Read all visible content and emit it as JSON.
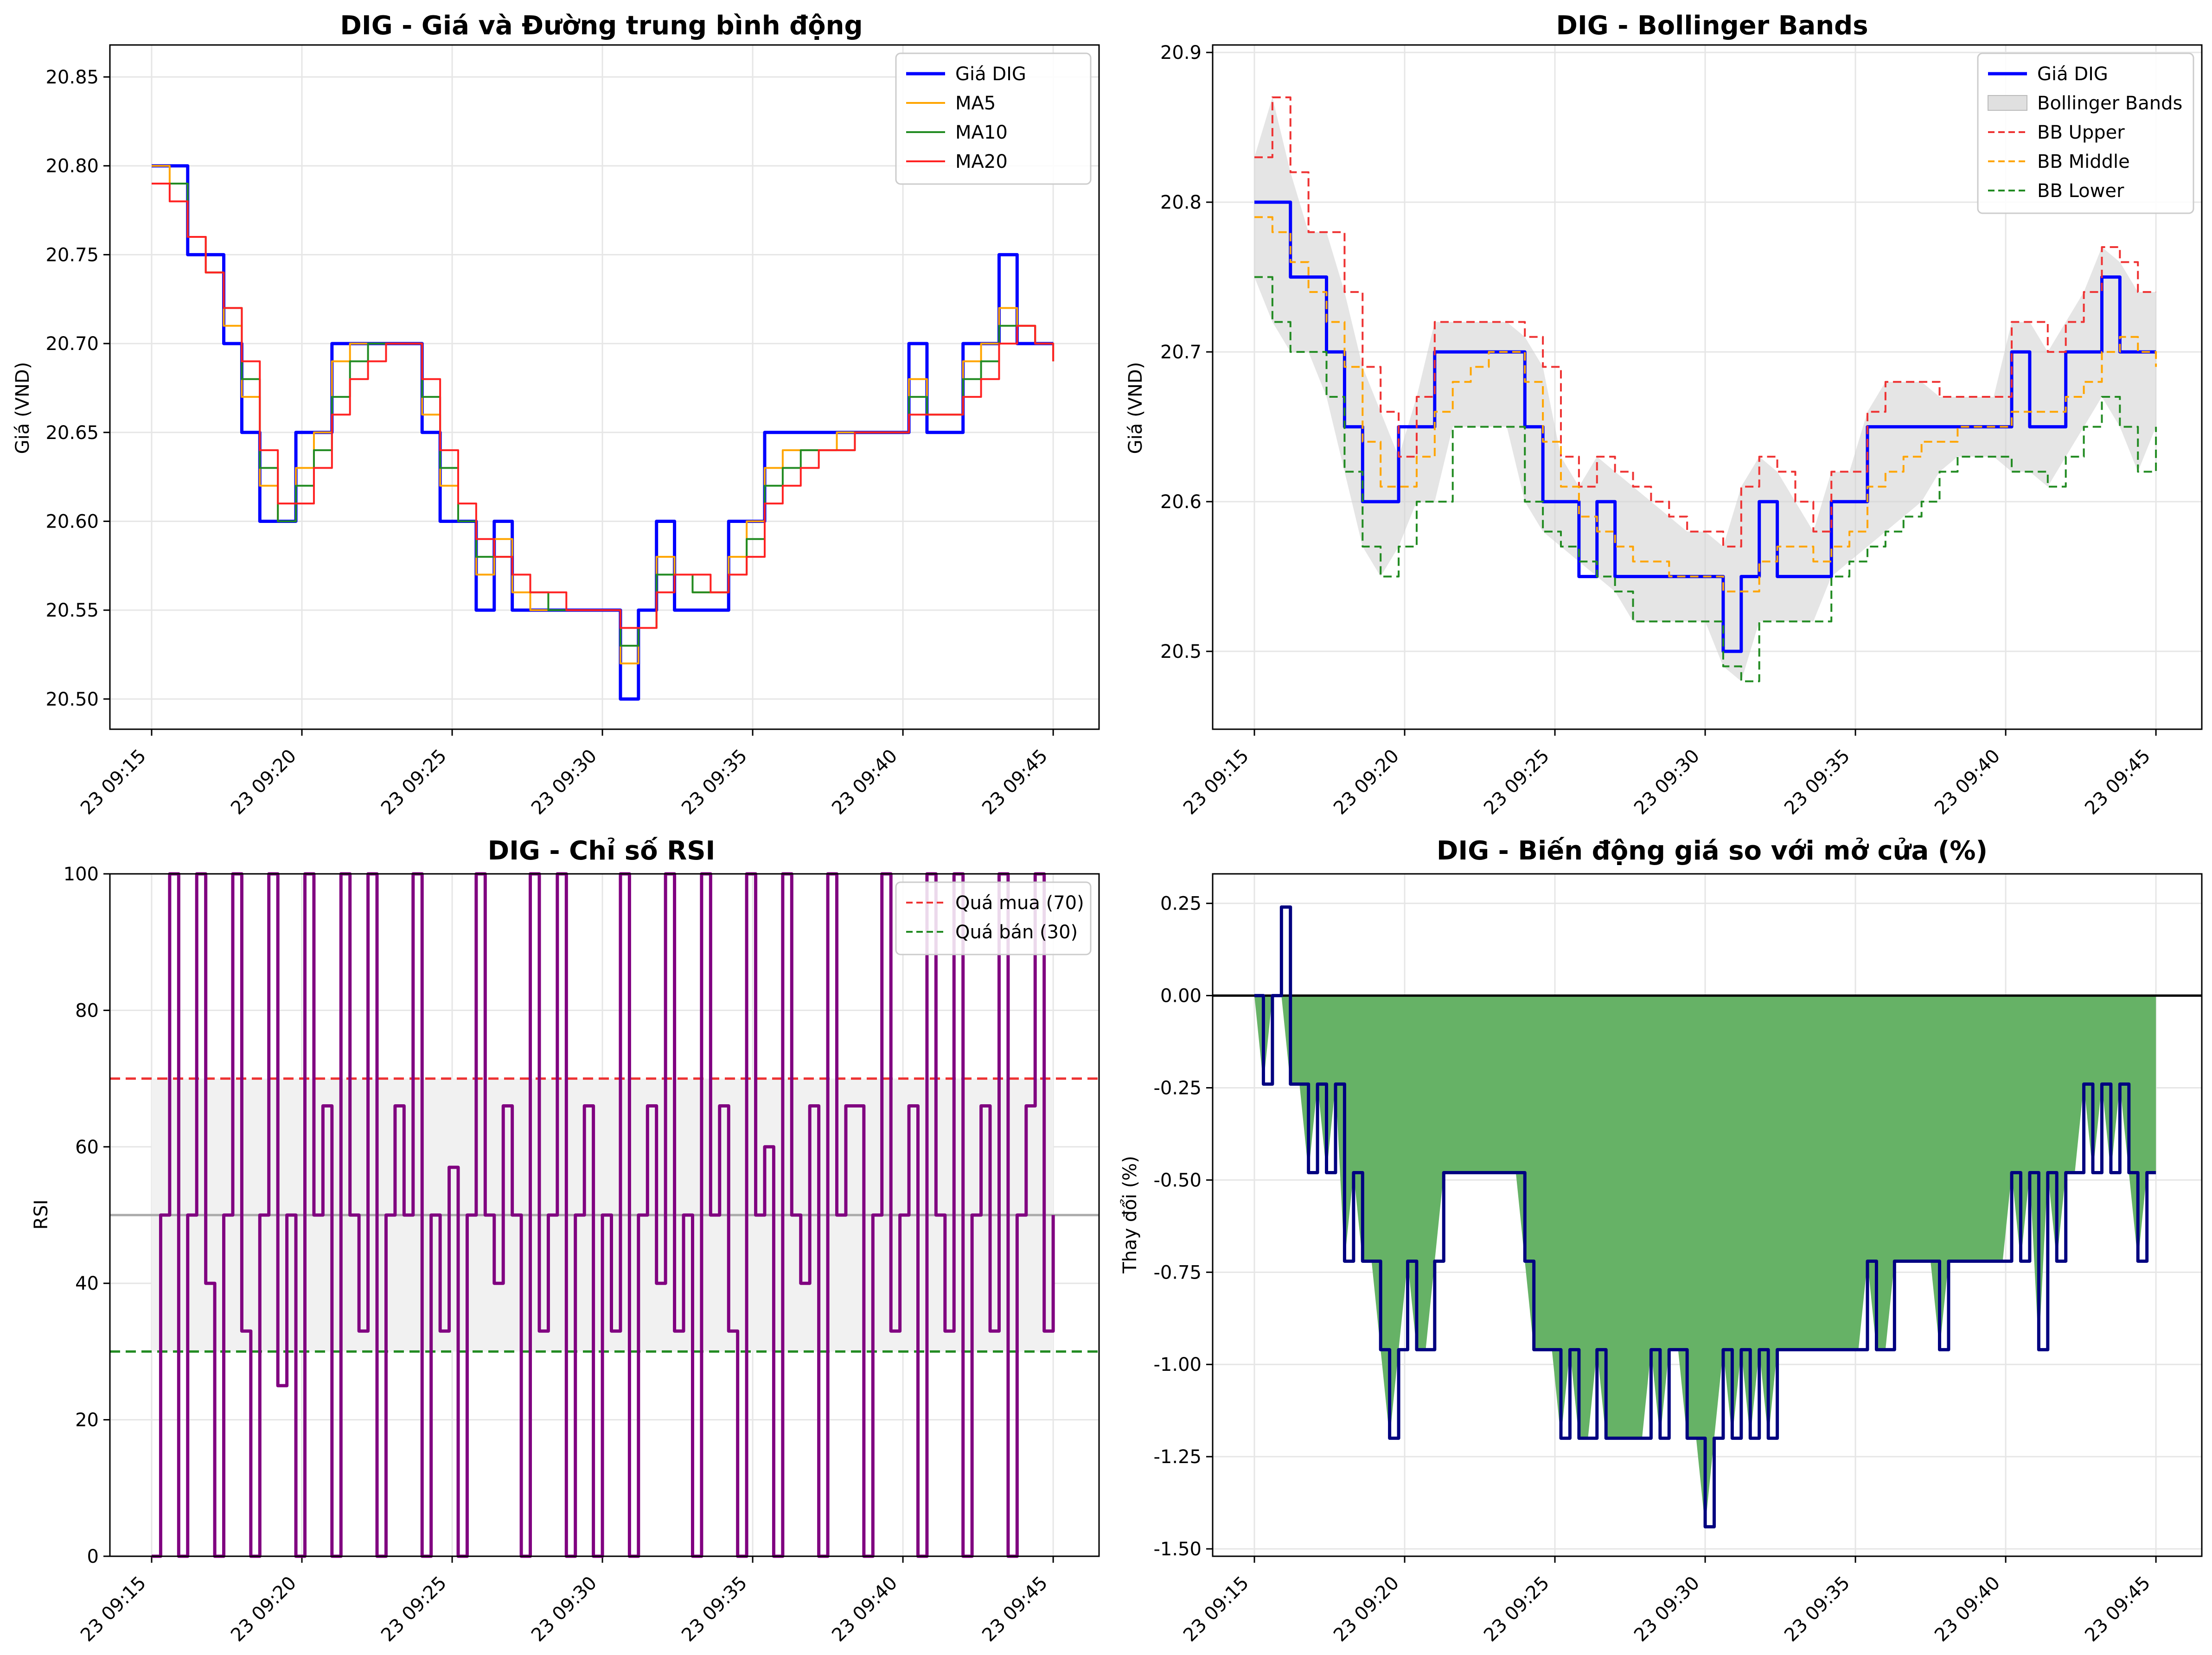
{
  "chart_data": [
    {
      "type": "line",
      "title": "DIG - Giá và Đường trung bình động",
      "xlabel": "",
      "ylabel": "Giá (VND)",
      "x_ticks": [
        "23 09:15",
        "23 09:20",
        "23 09:25",
        "23 09:30",
        "23 09:35",
        "23 09:40",
        "23 09:45"
      ],
      "y_ticks": [
        "20.50",
        "20.55",
        "20.60",
        "20.65",
        "20.70",
        "20.75",
        "20.80",
        "20.85"
      ],
      "x_range_min": [
        0,
        30.6
      ],
      "ylim": [
        20.483,
        20.868
      ],
      "grid": true,
      "legend": "top-right",
      "x": [
        0,
        0.6,
        1.2,
        1.8,
        2.4,
        3,
        3.6,
        4.2,
        4.8,
        5.4,
        6,
        6.6,
        7.2,
        7.8,
        8.4,
        9,
        9.6,
        10.2,
        10.8,
        11.4,
        12,
        12.6,
        13.2,
        13.8,
        14.4,
        15,
        15.6,
        16.2,
        16.8,
        17.4,
        18,
        18.6,
        19.2,
        19.8,
        20.4,
        21,
        21.6,
        22.2,
        22.8,
        23.4,
        24,
        24.6,
        25.2,
        25.8,
        26.4,
        27,
        27.6,
        28.2,
        28.8,
        29.4,
        30
      ],
      "series": [
        {
          "name": "Giá DIG",
          "color": "#0000ff",
          "width": 7,
          "values": [
            20.8,
            20.8,
            20.75,
            20.75,
            20.7,
            20.65,
            20.6,
            20.6,
            20.65,
            20.65,
            20.7,
            20.7,
            20.7,
            20.7,
            20.7,
            20.65,
            20.6,
            20.6,
            20.55,
            20.6,
            20.55,
            20.55,
            20.55,
            20.55,
            20.55,
            20.55,
            20.5,
            20.55,
            20.6,
            20.55,
            20.55,
            20.55,
            20.6,
            20.6,
            20.65,
            20.65,
            20.65,
            20.65,
            20.65,
            20.65,
            20.65,
            20.65,
            20.7,
            20.65,
            20.65,
            20.7,
            20.7,
            20.75,
            20.7,
            20.7,
            20.7
          ]
        },
        {
          "name": "MA5",
          "color": "#ffa500",
          "width": 4,
          "values": [
            20.8,
            20.79,
            20.76,
            20.74,
            20.71,
            20.67,
            20.62,
            20.6,
            20.63,
            20.65,
            20.69,
            20.7,
            20.7,
            20.7,
            20.7,
            20.66,
            20.62,
            20.6,
            20.57,
            20.59,
            20.56,
            20.55,
            20.55,
            20.55,
            20.55,
            20.55,
            20.52,
            20.54,
            20.58,
            20.57,
            20.56,
            20.56,
            20.58,
            20.6,
            20.63,
            20.64,
            20.64,
            20.64,
            20.65,
            20.65,
            20.65,
            20.65,
            20.68,
            20.66,
            20.66,
            20.69,
            20.7,
            20.72,
            20.71,
            20.7,
            20.7
          ]
        },
        {
          "name": "MA10",
          "color": "#228b22",
          "width": 4,
          "values": [
            20.79,
            20.79,
            20.76,
            20.74,
            20.72,
            20.68,
            20.63,
            20.6,
            20.62,
            20.64,
            20.67,
            20.69,
            20.7,
            20.7,
            20.7,
            20.67,
            20.63,
            20.6,
            20.58,
            20.58,
            20.57,
            20.56,
            20.55,
            20.55,
            20.55,
            20.55,
            20.53,
            20.54,
            20.57,
            20.57,
            20.56,
            20.56,
            20.57,
            20.59,
            20.62,
            20.63,
            20.64,
            20.64,
            20.64,
            20.65,
            20.65,
            20.65,
            20.67,
            20.66,
            20.66,
            20.68,
            20.69,
            20.71,
            20.71,
            20.7,
            20.69
          ]
        },
        {
          "name": "MA20",
          "color": "#ff2222",
          "width": 4,
          "values": [
            20.79,
            20.78,
            20.76,
            20.74,
            20.72,
            20.69,
            20.64,
            20.61,
            20.61,
            20.63,
            20.66,
            20.68,
            20.69,
            20.7,
            20.7,
            20.68,
            20.64,
            20.61,
            20.59,
            20.58,
            20.57,
            20.56,
            20.56,
            20.55,
            20.55,
            20.55,
            20.54,
            20.54,
            20.56,
            20.57,
            20.57,
            20.56,
            20.57,
            20.58,
            20.61,
            20.62,
            20.63,
            20.64,
            20.64,
            20.65,
            20.65,
            20.65,
            20.66,
            20.66,
            20.66,
            20.67,
            20.68,
            20.7,
            20.71,
            20.7,
            20.69
          ]
        }
      ]
    },
    {
      "type": "line",
      "title": "DIG - Bollinger Bands",
      "xlabel": "",
      "ylabel": "Giá (VND)",
      "x_ticks": [
        "23 09:15",
        "23 09:20",
        "23 09:25",
        "23 09:30",
        "23 09:35",
        "23 09:40",
        "23 09:45"
      ],
      "y_ticks": [
        "20.5",
        "20.6",
        "20.7",
        "20.8",
        "20.9"
      ],
      "x_range_min": [
        0,
        30.6
      ],
      "ylim": [
        20.448,
        20.905
      ],
      "grid": true,
      "legend": "top-right",
      "band_legend": "Bollinger Bands",
      "x": [
        0,
        0.6,
        1.2,
        1.8,
        2.4,
        3,
        3.6,
        4.2,
        4.8,
        5.4,
        6,
        6.6,
        7.2,
        7.8,
        8.4,
        9,
        9.6,
        10.2,
        10.8,
        11.4,
        12,
        12.6,
        13.2,
        13.8,
        14.4,
        15,
        15.6,
        16.2,
        16.8,
        17.4,
        18,
        18.6,
        19.2,
        19.8,
        20.4,
        21,
        21.6,
        22.2,
        22.8,
        23.4,
        24,
        24.6,
        25.2,
        25.8,
        26.4,
        27,
        27.6,
        28.2,
        28.8,
        29.4,
        30
      ],
      "series": [
        {
          "name": "Giá DIG",
          "color": "#0000ff",
          "width": 7,
          "dash": "",
          "values": [
            20.8,
            20.8,
            20.75,
            20.75,
            20.7,
            20.65,
            20.6,
            20.6,
            20.65,
            20.65,
            20.7,
            20.7,
            20.7,
            20.7,
            20.7,
            20.65,
            20.6,
            20.6,
            20.55,
            20.6,
            20.55,
            20.55,
            20.55,
            20.55,
            20.55,
            20.55,
            20.5,
            20.55,
            20.6,
            20.55,
            20.55,
            20.55,
            20.6,
            20.6,
            20.65,
            20.65,
            20.65,
            20.65,
            20.65,
            20.65,
            20.65,
            20.65,
            20.7,
            20.65,
            20.65,
            20.7,
            20.7,
            20.75,
            20.7,
            20.7,
            20.7
          ]
        },
        {
          "name": "BB Upper",
          "color": "#ee3333",
          "width": 4,
          "dash": "18,10",
          "values": [
            20.83,
            20.87,
            20.82,
            20.78,
            20.78,
            20.74,
            20.69,
            20.66,
            20.63,
            20.67,
            20.72,
            20.72,
            20.72,
            20.72,
            20.72,
            20.71,
            20.69,
            20.63,
            20.61,
            20.63,
            20.62,
            20.61,
            20.6,
            20.59,
            20.58,
            20.58,
            20.57,
            20.61,
            20.63,
            20.62,
            20.6,
            20.58,
            20.62,
            20.62,
            20.66,
            20.68,
            20.68,
            20.68,
            20.67,
            20.67,
            20.67,
            20.67,
            20.72,
            20.72,
            20.7,
            20.72,
            20.74,
            20.77,
            20.76,
            20.74,
            20.74
          ]
        },
        {
          "name": "BB Middle",
          "color": "#ffa500",
          "width": 4,
          "dash": "18,10",
          "values": [
            20.79,
            20.78,
            20.76,
            20.74,
            20.72,
            20.69,
            20.64,
            20.61,
            20.61,
            20.63,
            20.66,
            20.68,
            20.69,
            20.7,
            20.7,
            20.68,
            20.64,
            20.61,
            20.59,
            20.58,
            20.57,
            20.56,
            20.56,
            20.55,
            20.55,
            20.55,
            20.54,
            20.54,
            20.56,
            20.57,
            20.57,
            20.56,
            20.57,
            20.58,
            20.61,
            20.62,
            20.63,
            20.64,
            20.64,
            20.65,
            20.65,
            20.65,
            20.66,
            20.66,
            20.66,
            20.67,
            20.68,
            20.7,
            20.71,
            20.7,
            20.69
          ]
        },
        {
          "name": "BB Lower",
          "color": "#228b22",
          "width": 4,
          "dash": "18,10",
          "values": [
            20.75,
            20.72,
            20.7,
            20.7,
            20.67,
            20.62,
            20.57,
            20.55,
            20.57,
            20.6,
            20.6,
            20.65,
            20.65,
            20.65,
            20.65,
            20.6,
            20.58,
            20.57,
            20.56,
            20.55,
            20.54,
            20.52,
            20.52,
            20.52,
            20.52,
            20.52,
            20.49,
            20.48,
            20.52,
            20.52,
            20.52,
            20.52,
            20.55,
            20.56,
            20.57,
            20.58,
            20.59,
            20.6,
            20.62,
            20.63,
            20.63,
            20.63,
            20.62,
            20.62,
            20.61,
            20.63,
            20.65,
            20.67,
            20.65,
            20.62,
            20.65
          ]
        }
      ]
    },
    {
      "type": "line",
      "title": "DIG - Chỉ số RSI",
      "xlabel": "",
      "ylabel": "RSI",
      "x_ticks": [
        "23 09:15",
        "23 09:20",
        "23 09:25",
        "23 09:30",
        "23 09:35",
        "23 09:40",
        "23 09:45"
      ],
      "y_ticks": [
        "0",
        "20",
        "40",
        "60",
        "80",
        "100"
      ],
      "x_range_min": [
        0,
        30.6
      ],
      "ylim": [
        0,
        100
      ],
      "grid": true,
      "legend": "top-right",
      "shaded_range": [
        30,
        70
      ],
      "reference_lines": [
        {
          "name": "Quá mua (70)",
          "value": 70,
          "color": "#ee3333"
        },
        {
          "name": "Quá bán (30)",
          "value": 30,
          "color": "#228b22"
        },
        {
          "value": 50,
          "color": "#aaaaaa"
        }
      ],
      "x": [
        0,
        0.3,
        0.6,
        0.9,
        1.2,
        1.5,
        1.8,
        2.1,
        2.4,
        2.7,
        3,
        3.3,
        3.6,
        3.9,
        4.2,
        4.5,
        4.8,
        5.1,
        5.4,
        5.7,
        6,
        6.3,
        6.6,
        6.9,
        7.2,
        7.5,
        7.8,
        8.1,
        8.4,
        8.7,
        9,
        9.3,
        9.6,
        9.9,
        10.2,
        10.5,
        10.8,
        11.1,
        11.4,
        11.7,
        12,
        12.3,
        12.6,
        12.9,
        13.2,
        13.5,
        13.8,
        14.1,
        14.4,
        14.7,
        15,
        15.3,
        15.6,
        15.9,
        16.2,
        16.5,
        16.8,
        17.1,
        17.4,
        17.7,
        18,
        18.3,
        18.6,
        18.9,
        19.2,
        19.5,
        19.8,
        20.1,
        20.4,
        20.7,
        21,
        21.3,
        21.6,
        21.9,
        22.2,
        22.5,
        22.8,
        23.1,
        23.4,
        23.7,
        24,
        24.3,
        24.6,
        24.9,
        25.2,
        25.5,
        25.8,
        26.1,
        26.4,
        26.7,
        27,
        27.3,
        27.6,
        27.9,
        28.2,
        28.5,
        28.8,
        29.1,
        29.4,
        29.7,
        30
      ],
      "series": [
        {
          "name": "RSI",
          "color": "#800080",
          "width": 7,
          "values": [
            0,
            50,
            100,
            0,
            50,
            100,
            40,
            0,
            50,
            100,
            33,
            0,
            50,
            100,
            25,
            50,
            0,
            100,
            50,
            66,
            0,
            100,
            50,
            33,
            100,
            0,
            50,
            66,
            50,
            100,
            0,
            50,
            33,
            57,
            0,
            50,
            100,
            50,
            40,
            66,
            50,
            0,
            100,
            33,
            50,
            100,
            0,
            50,
            66,
            0,
            50,
            33,
            100,
            0,
            50,
            66,
            40,
            100,
            33,
            50,
            0,
            100,
            50,
            66,
            33,
            0,
            100,
            50,
            60,
            0,
            100,
            50,
            40,
            66,
            0,
            100,
            50,
            66,
            66,
            0,
            50,
            100,
            33,
            50,
            66,
            0,
            100,
            50,
            33,
            100,
            0,
            50,
            66,
            33,
            100,
            0,
            50,
            66,
            100,
            33,
            50
          ]
        }
      ]
    },
    {
      "type": "area",
      "title": "DIG - Biến động giá so với mở cửa (%)",
      "xlabel": "",
      "ylabel": "Thay đổi (%)",
      "x_ticks": [
        "23 09:15",
        "23 09:20",
        "23 09:25",
        "23 09:30",
        "23 09:35",
        "23 09:40",
        "23 09:45"
      ],
      "y_ticks": [
        "-1.50",
        "-1.25",
        "-1.00",
        "-0.75",
        "-0.50",
        "-0.25",
        "0.00",
        "0.25"
      ],
      "x_range_min": [
        0,
        30.6
      ],
      "ylim": [
        -1.52,
        0.33
      ],
      "grid": true,
      "fill_color": "#66b266",
      "baseline": 0,
      "x": [
        0,
        0.3,
        0.6,
        0.9,
        1.2,
        1.5,
        1.8,
        2.1,
        2.4,
        2.7,
        3,
        3.3,
        3.6,
        3.9,
        4.2,
        4.5,
        4.8,
        5.1,
        5.4,
        5.7,
        6,
        6.3,
        6.6,
        6.9,
        7.2,
        7.5,
        7.8,
        8.1,
        8.4,
        8.7,
        9,
        9.3,
        9.6,
        9.9,
        10.2,
        10.5,
        10.8,
        11.1,
        11.4,
        11.7,
        12,
        12.3,
        12.6,
        12.9,
        13.2,
        13.5,
        13.8,
        14.1,
        14.4,
        14.7,
        15,
        15.3,
        15.6,
        15.9,
        16.2,
        16.5,
        16.8,
        17.1,
        17.4,
        17.7,
        18,
        18.3,
        18.6,
        18.9,
        19.2,
        19.5,
        19.8,
        20.1,
        20.4,
        20.7,
        21,
        21.3,
        21.6,
        21.9,
        22.2,
        22.5,
        22.8,
        23.1,
        23.4,
        23.7,
        24,
        24.3,
        24.6,
        24.9,
        25.2,
        25.5,
        25.8,
        26.1,
        26.4,
        26.7,
        27,
        27.3,
        27.6,
        27.9,
        28.2,
        28.5,
        28.8,
        29.1,
        29.4,
        29.7,
        30
      ],
      "series": [
        {
          "name": "Thay đổi",
          "color": "#000080",
          "width": 7,
          "values": [
            0,
            -0.24,
            0,
            0.24,
            -0.24,
            -0.24,
            -0.48,
            -0.24,
            -0.48,
            -0.24,
            -0.72,
            -0.48,
            -0.72,
            -0.72,
            -0.96,
            -1.2,
            -0.96,
            -0.72,
            -0.96,
            -0.96,
            -0.72,
            -0.48,
            -0.48,
            -0.48,
            -0.48,
            -0.48,
            -0.48,
            -0.48,
            -0.48,
            -0.48,
            -0.72,
            -0.96,
            -0.96,
            -0.96,
            -1.2,
            -0.96,
            -1.2,
            -1.2,
            -0.96,
            -1.2,
            -1.2,
            -1.2,
            -1.2,
            -1.2,
            -0.96,
            -1.2,
            -0.96,
            -0.96,
            -1.2,
            -1.2,
            -1.44,
            -1.2,
            -0.96,
            -1.2,
            -0.96,
            -1.2,
            -0.96,
            -1.2,
            -0.96,
            -0.96,
            -0.96,
            -0.96,
            -0.96,
            -0.96,
            -0.96,
            -0.96,
            -0.96,
            -0.96,
            -0.72,
            -0.96,
            -0.96,
            -0.72,
            -0.72,
            -0.72,
            -0.72,
            -0.72,
            -0.96,
            -0.72,
            -0.72,
            -0.72,
            -0.72,
            -0.72,
            -0.72,
            -0.72,
            -0.48,
            -0.72,
            -0.48,
            -0.96,
            -0.48,
            -0.72,
            -0.48,
            -0.48,
            -0.24,
            -0.48,
            -0.24,
            -0.48,
            -0.24,
            -0.48,
            -0.72,
            -0.48,
            -0.48
          ]
        }
      ]
    }
  ]
}
